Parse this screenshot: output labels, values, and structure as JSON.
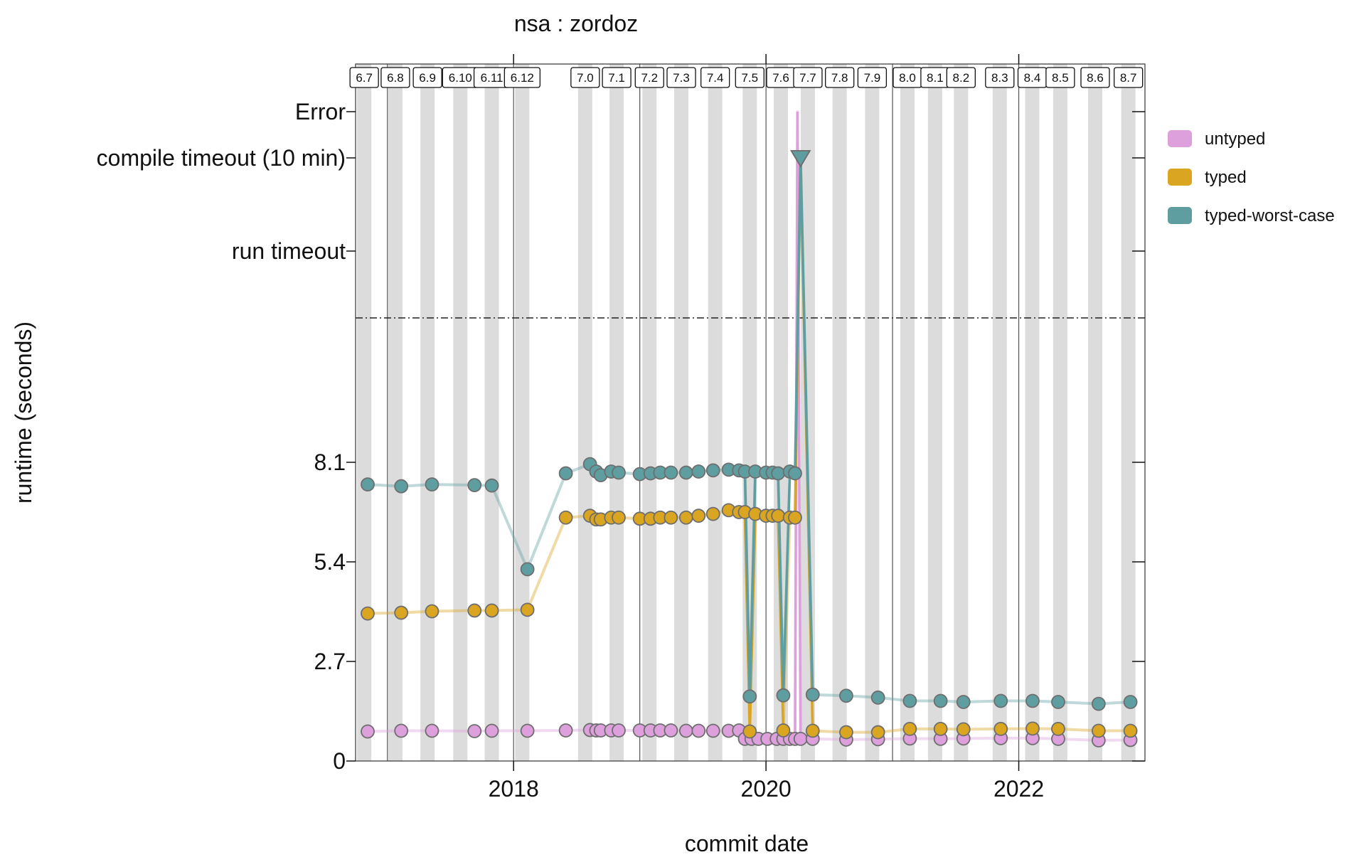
{
  "chart_data": {
    "type": "line",
    "title": "nsa : zordoz",
    "xlabel": "commit date",
    "ylabel": "runtime (seconds)",
    "x_range": [
      "2016-10-01",
      "2023-01-01"
    ],
    "x_ticks": [
      "2018",
      "2020",
      "2022"
    ],
    "y_range": [
      0,
      10.8
    ],
    "y_ticks": [
      "0",
      "2.7",
      "5.4",
      "8.1"
    ],
    "special_levels": [
      "run timeout",
      "compile timeout (10 min)",
      "Error"
    ],
    "break_line": "dash-dot separator between numeric runtimes and special levels",
    "grid": false,
    "legend_position": "right",
    "colors": {
      "untyped": "#dda0dd",
      "typed": "#daa520",
      "typed-worst-case": "#5f9ea0",
      "marker_edge": "#6e6e6e"
    },
    "releases": [
      {
        "label": "6.7",
        "date": "2016-10-26"
      },
      {
        "label": "6.8",
        "date": "2017-01-24"
      },
      {
        "label": "6.9",
        "date": "2017-04-27"
      },
      {
        "label": "6.10",
        "date": "2017-07-31"
      },
      {
        "label": "6.11",
        "date": "2017-10-30"
      },
      {
        "label": "6.12",
        "date": "2018-01-26"
      },
      {
        "label": "7.0",
        "date": "2018-07-27"
      },
      {
        "label": "7.1",
        "date": "2018-10-26"
      },
      {
        "label": "7.2",
        "date": "2019-01-29"
      },
      {
        "label": "7.3",
        "date": "2019-05-01"
      },
      {
        "label": "7.4",
        "date": "2019-08-07"
      },
      {
        "label": "7.5",
        "date": "2019-11-15"
      },
      {
        "label": "7.6",
        "date": "2020-02-13"
      },
      {
        "label": "7.7",
        "date": "2020-05-01"
      },
      {
        "label": "7.8",
        "date": "2020-08-01"
      },
      {
        "label": "7.9",
        "date": "2020-11-03"
      },
      {
        "label": "8.0",
        "date": "2021-02-13"
      },
      {
        "label": "8.1",
        "date": "2021-05-04"
      },
      {
        "label": "8.2",
        "date": "2021-07-18"
      },
      {
        "label": "8.3",
        "date": "2021-11-07"
      },
      {
        "label": "8.4",
        "date": "2022-02-09"
      },
      {
        "label": "8.5",
        "date": "2022-05-01"
      },
      {
        "label": "8.6",
        "date": "2022-08-10"
      },
      {
        "label": "8.7",
        "date": "2022-11-14"
      }
    ],
    "series": [
      {
        "name": "untyped",
        "points": [
          [
            "2016-11-05",
            0.8
          ],
          [
            "2017-02-10",
            0.82
          ],
          [
            "2017-05-10",
            0.82
          ],
          [
            "2017-09-10",
            0.81
          ],
          [
            "2017-10-30",
            0.82
          ],
          [
            "2018-02-10",
            0.82
          ],
          [
            "2018-06-01",
            0.83
          ],
          [
            "2018-08-10",
            0.84
          ],
          [
            "2018-08-28",
            0.83
          ],
          [
            "2018-09-10",
            0.83
          ],
          [
            "2018-10-10",
            0.83
          ],
          [
            "2018-11-01",
            0.83
          ],
          [
            "2019-01-01",
            0.83
          ],
          [
            "2019-02-01",
            0.83
          ],
          [
            "2019-03-01",
            0.83
          ],
          [
            "2019-04-01",
            0.83
          ],
          [
            "2019-05-15",
            0.82
          ],
          [
            "2019-06-20",
            0.82
          ],
          [
            "2019-08-01",
            0.82
          ],
          [
            "2019-09-15",
            0.82
          ],
          [
            "2019-10-15",
            0.83
          ],
          [
            "2019-11-01",
            0.6
          ],
          [
            "2019-11-20",
            0.6
          ],
          [
            "2019-12-10",
            0.6
          ],
          [
            "2020-01-05",
            0.6
          ],
          [
            "2020-02-01",
            0.6
          ],
          [
            "2020-02-20",
            0.6
          ],
          [
            "2020-03-10",
            0.6
          ],
          [
            "2020-03-25",
            0.6
          ],
          [
            "2020-04-01",
            "Error"
          ],
          [
            "2020-04-10",
            0.6
          ],
          [
            "2020-05-15",
            0.6
          ],
          [
            "2020-08-20",
            0.58
          ],
          [
            "2020-11-20",
            0.59
          ],
          [
            "2021-02-20",
            0.61
          ],
          [
            "2021-05-20",
            0.6
          ],
          [
            "2021-07-25",
            0.61
          ],
          [
            "2021-11-10",
            0.62
          ],
          [
            "2022-02-10",
            0.62
          ],
          [
            "2022-04-25",
            0.6
          ],
          [
            "2022-08-20",
            0.56
          ],
          [
            "2022-11-20",
            0.57
          ]
        ]
      },
      {
        "name": "typed",
        "points": [
          [
            "2016-11-05",
            4.0
          ],
          [
            "2017-02-10",
            4.02
          ],
          [
            "2017-05-10",
            4.06
          ],
          [
            "2017-09-10",
            4.08
          ],
          [
            "2017-10-30",
            4.08
          ],
          [
            "2018-02-10",
            4.1
          ],
          [
            "2018-06-01",
            6.6
          ],
          [
            "2018-08-10",
            6.65
          ],
          [
            "2018-08-28",
            6.55
          ],
          [
            "2018-09-10",
            6.55
          ],
          [
            "2018-10-10",
            6.6
          ],
          [
            "2018-11-01",
            6.6
          ],
          [
            "2019-01-01",
            6.57
          ],
          [
            "2019-02-01",
            6.57
          ],
          [
            "2019-03-01",
            6.6
          ],
          [
            "2019-04-01",
            6.6
          ],
          [
            "2019-05-15",
            6.6
          ],
          [
            "2019-06-20",
            6.65
          ],
          [
            "2019-08-01",
            6.7
          ],
          [
            "2019-09-15",
            6.8
          ],
          [
            "2019-10-15",
            6.75
          ],
          [
            "2019-11-01",
            6.75
          ],
          [
            "2019-11-15",
            0.8
          ],
          [
            "2019-12-01",
            6.7
          ],
          [
            "2020-01-01",
            6.65
          ],
          [
            "2020-01-20",
            6.65
          ],
          [
            "2020-02-05",
            6.65
          ],
          [
            "2020-02-20",
            0.83
          ],
          [
            "2020-03-10",
            6.6
          ],
          [
            "2020-03-25",
            6.6
          ],
          [
            "2020-04-10",
            "compile timeout (10 min)"
          ],
          [
            "2020-05-15",
            0.82
          ],
          [
            "2020-08-20",
            0.78
          ],
          [
            "2020-11-20",
            0.78
          ],
          [
            "2021-02-20",
            0.87
          ],
          [
            "2021-05-20",
            0.87
          ],
          [
            "2021-07-25",
            0.86
          ],
          [
            "2021-11-10",
            0.87
          ],
          [
            "2022-02-10",
            0.88
          ],
          [
            "2022-04-25",
            0.87
          ],
          [
            "2022-08-20",
            0.82
          ],
          [
            "2022-11-20",
            0.82
          ]
        ]
      },
      {
        "name": "typed-worst-case",
        "points": [
          [
            "2016-11-05",
            7.5
          ],
          [
            "2017-02-10",
            7.45
          ],
          [
            "2017-05-10",
            7.5
          ],
          [
            "2017-09-10",
            7.48
          ],
          [
            "2017-10-30",
            7.47
          ],
          [
            "2018-02-10",
            5.2
          ],
          [
            "2018-06-01",
            7.8
          ],
          [
            "2018-08-10",
            8.05
          ],
          [
            "2018-08-28",
            7.85
          ],
          [
            "2018-09-10",
            7.75
          ],
          [
            "2018-10-10",
            7.85
          ],
          [
            "2018-11-01",
            7.82
          ],
          [
            "2019-01-01",
            7.78
          ],
          [
            "2019-02-01",
            7.8
          ],
          [
            "2019-03-01",
            7.82
          ],
          [
            "2019-04-01",
            7.82
          ],
          [
            "2019-05-15",
            7.82
          ],
          [
            "2019-06-20",
            7.85
          ],
          [
            "2019-08-01",
            7.88
          ],
          [
            "2019-09-15",
            7.9
          ],
          [
            "2019-10-15",
            7.88
          ],
          [
            "2019-11-01",
            7.85
          ],
          [
            "2019-11-15",
            1.75
          ],
          [
            "2019-12-01",
            7.85
          ],
          [
            "2020-01-01",
            7.82
          ],
          [
            "2020-01-20",
            7.82
          ],
          [
            "2020-02-05",
            7.8
          ],
          [
            "2020-02-20",
            1.78
          ],
          [
            "2020-03-10",
            7.85
          ],
          [
            "2020-03-25",
            7.8
          ],
          [
            "2020-04-10",
            "compile timeout (10 min)"
          ],
          [
            "2020-05-15",
            1.8
          ],
          [
            "2020-08-20",
            1.77
          ],
          [
            "2020-11-20",
            1.72
          ],
          [
            "2021-02-20",
            1.63
          ],
          [
            "2021-05-20",
            1.63
          ],
          [
            "2021-07-25",
            1.6
          ],
          [
            "2021-11-10",
            1.63
          ],
          [
            "2022-02-10",
            1.63
          ],
          [
            "2022-04-25",
            1.6
          ],
          [
            "2022-08-20",
            1.55
          ],
          [
            "2022-11-20",
            1.6
          ]
        ]
      }
    ]
  }
}
